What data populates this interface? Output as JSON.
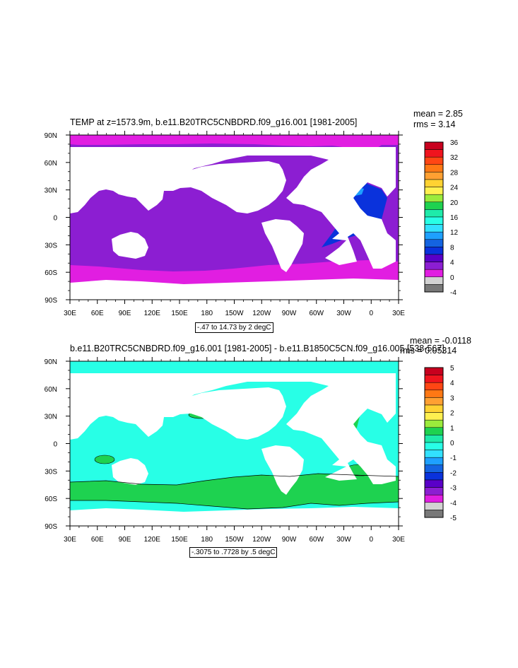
{
  "chart_data": [
    {
      "type": "heatmap",
      "title": "TEMP at z=1573.9m, b.e11.B20TRC5CNBDRD.f09_g16.001 [1981-2005]",
      "stats": [
        "mean = 2.85",
        "rms = 3.14"
      ],
      "range_note": "-.47 to 14.73 by 2 degC",
      "x_tick_labels": [
        "30E",
        "60E",
        "90E",
        "120E",
        "150E",
        "180",
        "150W",
        "120W",
        "90W",
        "60W",
        "30W",
        "0",
        "30E"
      ],
      "y_tick_labels": [
        "90N",
        "60N",
        "30N",
        "0",
        "30S",
        "60S",
        "90S"
      ],
      "colorbar_labels": [
        "36",
        "32",
        "28",
        "24",
        "20",
        "16",
        "12",
        "8",
        "4",
        "0",
        "-4"
      ],
      "colorbar_colors": [
        "#C8001E",
        "#F0141E",
        "#FF4614",
        "#FF7814",
        "#FFA032",
        "#FFD232",
        "#FFF050",
        "#9BEB3C",
        "#1ED250",
        "#1EEBAA",
        "#28FFE6",
        "#32E1FF",
        "#1EA0FF",
        "#1464E1",
        "#0A32DC",
        "#5A00C8",
        "#8C1ED2",
        "#E11EE1",
        "#D2D2D2",
        "#787878"
      ],
      "dominant_fills": {
        "deep_south": "#E11EE1",
        "main_ocean": "#8C1ED2",
        "north_atlantic": "#0A32DC",
        "mediterranean": "#1EA0FF"
      }
    },
    {
      "type": "heatmap",
      "title": "b.e11.B20TRC5CNBDRD.f09_g16.001 [1981-2005] - b.e11.B1850C5CN.f09_g16.005 [538-567]",
      "stats": [
        "mean = -0.0118",
        "rms = 0.05314"
      ],
      "range_note": "-.3075 to .7728 by .5 degC",
      "x_tick_labels": [
        "30E",
        "60E",
        "90E",
        "120E",
        "150E",
        "180",
        "150W",
        "120W",
        "90W",
        "60W",
        "30W",
        "0",
        "30E"
      ],
      "y_tick_labels": [
        "90N",
        "60N",
        "30N",
        "0",
        "30S",
        "60S",
        "90S"
      ],
      "colorbar_labels": [
        "5",
        "4",
        "3",
        "2",
        "1",
        "0",
        "-1",
        "-2",
        "-3",
        "-4",
        "-5"
      ],
      "colorbar_colors": [
        "#C8001E",
        "#F0141E",
        "#FF4614",
        "#FF7814",
        "#FFA032",
        "#FFD232",
        "#FFF050",
        "#9BEB3C",
        "#1ED250",
        "#1EEBAA",
        "#28FFE6",
        "#32E1FF",
        "#1EA0FF",
        "#1464E1",
        "#0A32DC",
        "#5A00C8",
        "#8C1ED2",
        "#E11EE1",
        "#D2D2D2",
        "#787878"
      ],
      "dominant_fills": {
        "main_ocean": "#28FFE6",
        "southern_band": "#1ED250",
        "north_atlantic": "#1ED250"
      }
    }
  ]
}
